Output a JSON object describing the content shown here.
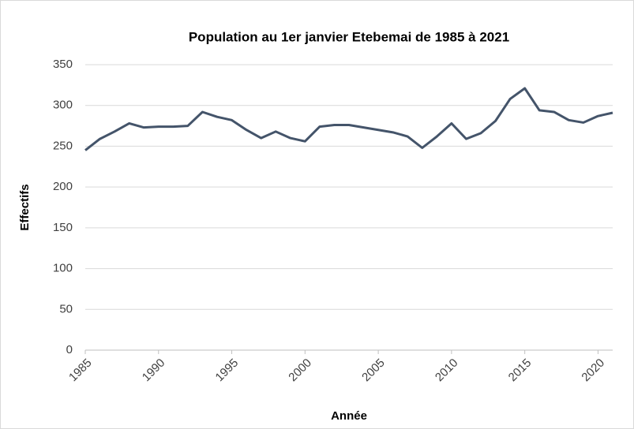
{
  "chart_data": {
    "type": "line",
    "title": "Population au 1er janvier Etebemai de 1985 à 2021",
    "x_label": "Année",
    "y_label": "Effectifs",
    "x": [
      1985,
      1986,
      1987,
      1988,
      1989,
      1990,
      1991,
      1992,
      1993,
      1994,
      1995,
      1996,
      1997,
      1998,
      1999,
      2000,
      2001,
      2002,
      2003,
      2004,
      2005,
      2006,
      2007,
      2008,
      2009,
      2010,
      2011,
      2012,
      2013,
      2014,
      2015,
      2016,
      2017,
      2018,
      2019,
      2020,
      2021
    ],
    "series": [
      {
        "name": "Effectifs",
        "color": "#44546a",
        "values": [
          245,
          259,
          268,
          278,
          273,
          274,
          274,
          275,
          292,
          286,
          282,
          270,
          260,
          268,
          260,
          256,
          274,
          276,
          276,
          273,
          270,
          267,
          262,
          248,
          262,
          278,
          259,
          266,
          281,
          308,
          321,
          294,
          292,
          282,
          279,
          287,
          291
        ]
      }
    ],
    "xlim": [
      1985,
      2021
    ],
    "xticks": [
      1985,
      1990,
      1995,
      2000,
      2005,
      2010,
      2015,
      2020
    ],
    "ylim": [
      0,
      350
    ],
    "yticks": [
      0,
      50,
      100,
      150,
      200,
      250,
      300,
      350
    ],
    "grid": true
  }
}
